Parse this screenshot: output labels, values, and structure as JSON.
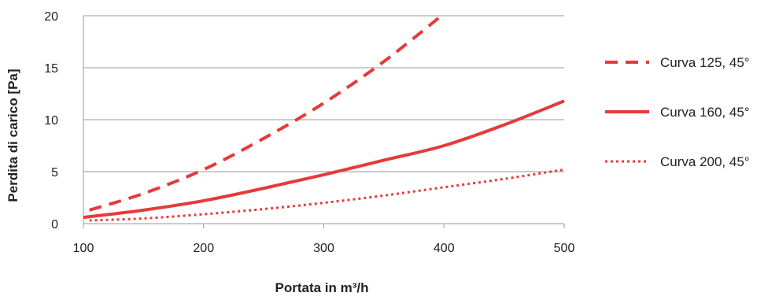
{
  "chart_data": {
    "type": "line",
    "xlabel": "Portata in m³/h",
    "ylabel": "Perdita di carico [Pa]",
    "xlim": [
      100,
      500
    ],
    "ylim": [
      0,
      20
    ],
    "x_ticks": [
      "100",
      "200",
      "300",
      "400",
      "500"
    ],
    "y_ticks": [
      "0",
      "5",
      "10",
      "15",
      "20"
    ],
    "grid": "horizontal",
    "legend_position": "right",
    "series": [
      {
        "name": "Curva 125, 45°",
        "style": "dashed",
        "color": "#e63a3a",
        "x": [
          105,
          150,
          200,
          250,
          300,
          350,
          400
        ],
        "y": [
          1.3,
          2.9,
          5.2,
          8.2,
          11.6,
          15.6,
          20.2
        ]
      },
      {
        "name": "Curva 160, 45°",
        "style": "solid",
        "color": "#e63a3a",
        "x": [
          100,
          150,
          200,
          250,
          300,
          350,
          400,
          450,
          500
        ],
        "y": [
          0.6,
          1.3,
          2.2,
          3.4,
          4.7,
          6.1,
          7.5,
          9.5,
          11.8
        ]
      },
      {
        "name": "Curva 200, 45°",
        "style": "dotted",
        "color": "#e63a3a",
        "x": [
          105,
          150,
          200,
          250,
          300,
          350,
          400,
          450,
          500
        ],
        "y": [
          0.3,
          0.5,
          0.9,
          1.4,
          2.0,
          2.7,
          3.5,
          4.3,
          5.2
        ]
      }
    ]
  }
}
